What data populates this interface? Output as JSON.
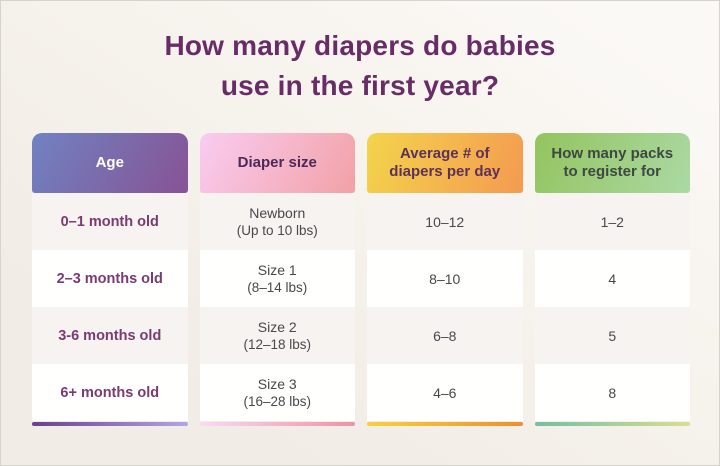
{
  "title": {
    "full": "How many diapers do babies use in the first year?",
    "line1": "How many diapers do babies",
    "line2": "use in the first year?",
    "color": "#682c66"
  },
  "background": {
    "base": "#f1ece5",
    "highlight": "#fbf9f6"
  },
  "table": {
    "columns": [
      {
        "label": "Age",
        "header_text_color": "#ffffff",
        "gradient": [
          "#7082c2",
          "#875394"
        ],
        "strip": [
          "#6a3f90",
          "#b4a5e3"
        ]
      },
      {
        "label": "Diaper size",
        "header_text_color": "#4c2a58",
        "gradient": [
          "#f9ccf1",
          "#f2a1a6"
        ],
        "strip": [
          "#f9d9f4",
          "#ee92a5"
        ]
      },
      {
        "label": "Average # of diapers per day",
        "header_text_color": "#5d3158",
        "gradient": [
          "#f3d44c",
          "#f49a50"
        ],
        "strip": [
          "#f5d23c",
          "#ee8f2e"
        ]
      },
      {
        "label": "How many packs to register for",
        "header_text_color": "#3f4742",
        "gradient": [
          "#93c45e",
          "#abd9a4"
        ],
        "strip": [
          "#74bfa3",
          "#d8df8f"
        ]
      }
    ],
    "rows": [
      {
        "age": "0–1 month old",
        "size": "Newborn",
        "size_range": "(Up to 10 lbs)",
        "per_day": "10–12",
        "packs": "1–2"
      },
      {
        "age": "2–3 months old",
        "size": "Size 1",
        "size_range": "(8–14 lbs)",
        "per_day": "8–10",
        "packs": "4"
      },
      {
        "age": "3-6 months old",
        "size": "Size 2",
        "size_range": "(12–18 lbs)",
        "per_day": "6–8",
        "packs": "5"
      },
      {
        "age": "6+ months old",
        "size": "Size 3",
        "size_range": "(16–28 lbs)",
        "per_day": "4–6",
        "packs": "8"
      }
    ]
  },
  "chart_data": {
    "type": "table",
    "title": "How many diapers do babies use in the first year?",
    "columns": [
      "Age",
      "Diaper size",
      "Average # of diapers per day",
      "How many packs to register for"
    ],
    "rows": [
      [
        "0–1 month old",
        "Newborn (Up to 10 lbs)",
        "10–12",
        "1–2"
      ],
      [
        "2–3 months old",
        "Size 1 (8–14 lbs)",
        "8–10",
        "4"
      ],
      [
        "3-6 months old",
        "Size 2 (12–18 lbs)",
        "6–8",
        "5"
      ],
      [
        "6+ months old",
        "Size 3 (16–28 lbs)",
        "4–6",
        "8"
      ]
    ]
  }
}
